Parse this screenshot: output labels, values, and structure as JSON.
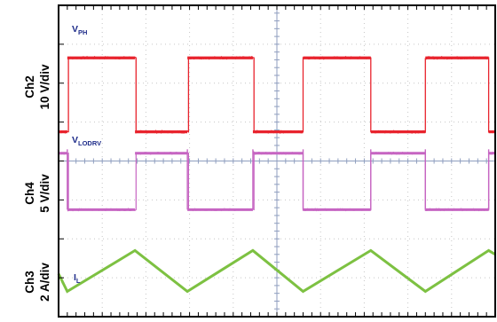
{
  "colors": {
    "vph": "#e8232d",
    "vlodrv": "#c665c2",
    "il": "#7dc142",
    "label_text": "#1f2d8a",
    "grid": "#c6c6c6",
    "frame": "#000000",
    "center_line": "#8f9ebf"
  },
  "chart_data": {
    "type": "line",
    "title": "",
    "grid": true,
    "grid_divisions": {
      "x": 10,
      "y": 8
    },
    "x": {
      "label": "",
      "unit": "div",
      "range": [
        0,
        10
      ]
    },
    "channels": [
      {
        "id": "ch2",
        "axis_label_line1": "Ch2",
        "axis_label_line2": "10 V/div",
        "trace_name_main": "V",
        "trace_name_sub": "PH",
        "color": "vph",
        "waveform": "square",
        "high_div": 6.65,
        "low_div": 4.75,
        "rising_edges_div": [
          0.2,
          2.95,
          5.6,
          8.4
        ],
        "falling_edges_div": [
          1.75,
          4.45,
          7.15,
          9.85
        ],
        "noise_div": 0.03
      },
      {
        "id": "ch4",
        "axis_label_line1": "Ch4",
        "axis_label_line2": "5 V/div",
        "trace_name_main": "V",
        "trace_name_sub": "LODRV",
        "color": "vlodrv",
        "waveform": "pulse",
        "high_div": 4.2,
        "low_div": 2.75,
        "on_intervals_div": [
          [
            -0.5,
            0.2
          ],
          [
            1.75,
            2.95
          ],
          [
            4.45,
            5.6
          ],
          [
            7.15,
            8.4
          ],
          [
            9.85,
            10.5
          ]
        ],
        "spikes_div": [
          0.2,
          2.95,
          5.6,
          8.4,
          4.45,
          7.15,
          9.85
        ],
        "noise_div": 0.025
      },
      {
        "id": "ch3",
        "axis_label_line1": "Ch3",
        "axis_label_line2": "2 A/div",
        "trace_name_main": "I",
        "trace_name_sub": "L",
        "color": "il",
        "waveform": "triangle",
        "max_div": 1.7,
        "min_div": 0.65,
        "vertices_div": [
          [
            0.0,
            1.1
          ],
          [
            0.2,
            0.65
          ],
          [
            1.75,
            1.7
          ],
          [
            2.95,
            0.65
          ],
          [
            4.45,
            1.7
          ],
          [
            5.6,
            0.65
          ],
          [
            7.15,
            1.7
          ],
          [
            8.4,
            0.65
          ],
          [
            9.85,
            1.7
          ],
          [
            10.0,
            1.6
          ]
        ]
      }
    ]
  }
}
